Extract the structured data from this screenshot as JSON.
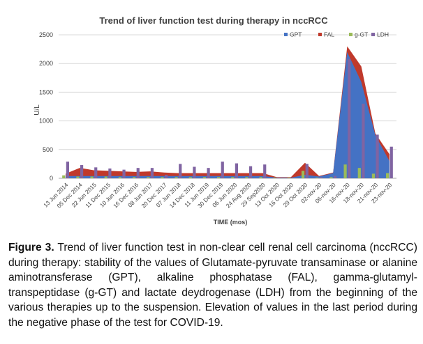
{
  "chart_data": {
    "type": "area",
    "title": "Trend of liver function test during therapy in nccRCC",
    "xlabel": "TIME (mos)",
    "ylabel": "U/L",
    "ylim": [
      0,
      2500
    ],
    "yticks": [
      0,
      500,
      1000,
      1500,
      2000,
      2500
    ],
    "grid": true,
    "legend_position": "top-right",
    "categories": [
      "13 Jun 2014",
      "05 Dec 2014",
      "22 Jun 2015",
      "11 Dec 2015",
      "10 Jun 2016",
      "16 Dec 2016",
      "08 Jun 2017",
      "20 Dec 2017",
      "07 Jun 2018",
      "14 Dec 2018",
      "11 Jun 2019",
      "30 Dec 2019",
      "06 Jun 2020",
      "24 Aug 2020",
      "29 Sep2020",
      "13 Oct 2020",
      "16 Oct 2020",
      "29 Oct 2020",
      "02-nov-20",
      "06-nov-20",
      "16-nov-20",
      "18-nov-20",
      "21-nov-20",
      "23-nov-20"
    ],
    "series": [
      {
        "name": "GPT",
        "type": "area",
        "color": "#4472c4",
        "values": [
          40,
          40,
          40,
          40,
          40,
          40,
          40,
          40,
          40,
          40,
          40,
          40,
          40,
          40,
          40,
          10,
          10,
          60,
          30,
          90,
          2200,
          1680,
          750,
          300
        ]
      },
      {
        "name": "FAL",
        "type": "area",
        "color": "#c0392b",
        "values": [
          80,
          180,
          140,
          130,
          120,
          110,
          120,
          100,
          90,
          90,
          90,
          90,
          90,
          90,
          90,
          20,
          20,
          270,
          40,
          100,
          2300,
          1950,
          780,
          420
        ]
      },
      {
        "name": "g-GT",
        "type": "bar",
        "color": "#9bbb59",
        "values": [
          50,
          30,
          30,
          30,
          20,
          20,
          20,
          20,
          20,
          20,
          20,
          20,
          20,
          20,
          20,
          10,
          10,
          130,
          10,
          20,
          240,
          180,
          80,
          90
        ]
      },
      {
        "name": "LDH",
        "type": "bar",
        "color": "#8064a2",
        "values": [
          290,
          230,
          190,
          170,
          150,
          180,
          180,
          60,
          250,
          200,
          180,
          290,
          260,
          210,
          240,
          10,
          10,
          250,
          20,
          40,
          2080,
          1300,
          760,
          550
        ]
      }
    ]
  },
  "caption": {
    "label": "Figure 3.",
    "text": " Trend of liver function test in non-clear cell renal cell carcinoma (nccRCC) during therapy: stability of the values of Glutamate-pyruvate transaminase or alanine aminotransferase (GPT), alkaline phosphatase (FAL), gamma-glutamyl- transpeptidase (g-GT) and lactate deydrogenase (LDH) from the beginning of the various therapies up to the suspension. Elevation of values in the last period during the negative phase of the test for COVID-19."
  }
}
